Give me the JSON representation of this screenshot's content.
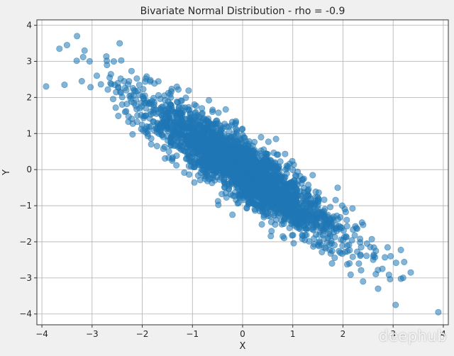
{
  "chart_data": {
    "type": "scatter",
    "title": "Bivariate Normal Distribution - rho = -0.9",
    "xlabel": "X",
    "ylabel": "Y",
    "xlim": [
      -4.1,
      4.1
    ],
    "ylim": [
      -4.3,
      4.15
    ],
    "xticks": [
      -4,
      -3,
      -2,
      -1,
      0,
      1,
      2,
      3,
      4
    ],
    "yticks": [
      -4,
      -3,
      -2,
      -1,
      0,
      1,
      2,
      3,
      4
    ],
    "grid": true,
    "marker_color": "#1f77b4",
    "marker_alpha": 0.55,
    "distribution": {
      "mean_x": 0,
      "mean_y": 0,
      "std_x": 1,
      "std_y": 1,
      "rho": -0.9,
      "n_points_approx": 10000
    },
    "notable_points": [
      {
        "x": -3.65,
        "y": 3.35
      },
      {
        "x": -3.3,
        "y": 3.7
      },
      {
        "x": -3.5,
        "y": 3.45
      },
      {
        "x": -3.15,
        "y": 3.3
      },
      {
        "x": -2.45,
        "y": 3.5
      },
      {
        "x": -3.55,
        "y": 2.35
      },
      {
        "x": -3.05,
        "y": 3.0
      },
      {
        "x": 2.95,
        "y": -2.4
      },
      {
        "x": 3.05,
        "y": -3.75
      },
      {
        "x": 3.35,
        "y": -2.85
      },
      {
        "x": 3.9,
        "y": -3.95
      },
      {
        "x": 2.7,
        "y": -3.3
      },
      {
        "x": 3.2,
        "y": -3.0
      },
      {
        "x": -2.65,
        "y": 2.55
      },
      {
        "x": 2.4,
        "y": -3.1
      }
    ]
  },
  "watermark": "deephub"
}
